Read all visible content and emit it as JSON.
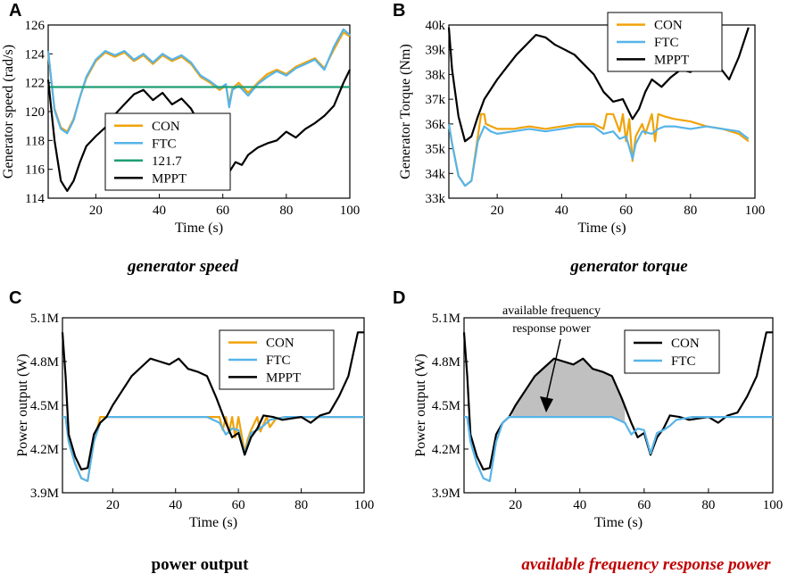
{
  "chart_data": [
    {
      "type": "line",
      "panel": "A",
      "caption": "generator speed",
      "xlabel": "Time (s)",
      "ylabel": "Generator speed (rad/s)",
      "xlim": [
        5,
        100
      ],
      "ylim": [
        114,
        126
      ],
      "xticks": [
        20,
        40,
        60,
        80,
        100
      ],
      "yticks": [
        114,
        116,
        118,
        120,
        122,
        124,
        126
      ],
      "legend_position": "lower-center",
      "series": [
        {
          "name": "CON",
          "color": "#F0A30A",
          "x": [
            5,
            7,
            9,
            11,
            13,
            15,
            17,
            20,
            23,
            26,
            29,
            32,
            35,
            38,
            41,
            44,
            47,
            50,
            53,
            56,
            59,
            61,
            62,
            63,
            65,
            68,
            71,
            74,
            77,
            80,
            83,
            86,
            89,
            92,
            95,
            98,
            100
          ],
          "y": [
            124,
            120.2,
            118.9,
            118.6,
            119.5,
            121,
            122.3,
            123.5,
            124.1,
            123.8,
            124.1,
            123.5,
            123.9,
            123.3,
            123.9,
            123.5,
            123.8,
            123.3,
            122.4,
            122,
            121.5,
            121.8,
            120.5,
            121.6,
            122,
            121.3,
            122,
            122.6,
            122.9,
            122.6,
            123.1,
            123.4,
            123.7,
            123,
            124.3,
            125.5,
            125.2
          ]
        },
        {
          "name": "FTC",
          "color": "#56B4E9",
          "x": [
            5,
            7,
            9,
            11,
            13,
            15,
            17,
            20,
            23,
            26,
            29,
            32,
            35,
            38,
            41,
            44,
            47,
            50,
            53,
            56,
            59,
            61,
            62,
            63,
            65,
            68,
            71,
            74,
            77,
            80,
            83,
            86,
            89,
            92,
            95,
            98,
            100
          ],
          "y": [
            124.2,
            120.1,
            118.8,
            118.5,
            119.4,
            121,
            122.4,
            123.6,
            124.2,
            123.9,
            124.2,
            123.6,
            124,
            123.4,
            124,
            123.6,
            123.9,
            123.4,
            122.5,
            122.1,
            121.6,
            121.9,
            120.3,
            121.5,
            121.8,
            121.1,
            121.9,
            122.4,
            122.8,
            122.5,
            123,
            123.3,
            123.6,
            122.9,
            124.5,
            125.7,
            125.3
          ]
        },
        {
          "name": "121.7",
          "color": "#1E9E74",
          "x": [
            5,
            100
          ],
          "y": [
            121.7,
            121.7
          ]
        },
        {
          "name": "MPPT",
          "color": "#000000",
          "x": [
            5,
            7,
            9,
            11,
            13,
            15,
            17,
            20,
            23,
            26,
            29,
            32,
            35,
            38,
            41,
            44,
            47,
            50,
            53,
            56,
            59,
            62,
            64,
            66,
            68,
            71,
            74,
            77,
            80,
            83,
            86,
            89,
            92,
            95,
            98,
            100
          ],
          "y": [
            122.2,
            118,
            115.2,
            114.5,
            115.2,
            116.5,
            117.6,
            118.3,
            118.9,
            119.8,
            120.5,
            121.2,
            121.5,
            120.8,
            121.3,
            120.5,
            120.9,
            120.2,
            119,
            118,
            117.3,
            115.8,
            116.5,
            116.3,
            117,
            117.5,
            117.8,
            118,
            118.6,
            118.2,
            118.8,
            119.2,
            119.7,
            120.4,
            122,
            122.9
          ]
        }
      ]
    },
    {
      "type": "line",
      "panel": "B",
      "caption": "generator torque",
      "xlabel": "Time (s)",
      "ylabel": "Generator Torque (Nm)",
      "xlim": [
        5,
        100
      ],
      "ylim": [
        33000,
        40000
      ],
      "xticks": [
        20,
        40,
        60,
        80,
        100
      ],
      "yticks": [
        33000,
        34000,
        35000,
        36000,
        37000,
        38000,
        39000,
        40000
      ],
      "ytick_labels": [
        "33k",
        "34k",
        "35k",
        "36k",
        "37k",
        "38k",
        "39k",
        "40k"
      ],
      "legend_position": "top-center",
      "series": [
        {
          "name": "CON",
          "color": "#F0A30A",
          "x": [
            5,
            6,
            8,
            10,
            12,
            14,
            15,
            16,
            16.5,
            20,
            25,
            30,
            35,
            40,
            45,
            50,
            53,
            54,
            56,
            58,
            59,
            60,
            61,
            62,
            63,
            65,
            66,
            68,
            69,
            70,
            72,
            75,
            80,
            85,
            90,
            95,
            98
          ],
          "y": [
            36000,
            35200,
            33900,
            33500,
            33700,
            35500,
            36400,
            36400,
            36000,
            35800,
            35800,
            35900,
            35800,
            35900,
            36000,
            36000,
            35800,
            36400,
            36400,
            35700,
            36400,
            35300,
            36200,
            34500,
            35500,
            36000,
            35600,
            36400,
            35300,
            36400,
            36300,
            36200,
            36100,
            35900,
            35800,
            35600,
            35300
          ]
        },
        {
          "name": "FTC",
          "color": "#56B4E9",
          "x": [
            5,
            6,
            8,
            10,
            12,
            14,
            16,
            18,
            20,
            25,
            30,
            35,
            40,
            45,
            50,
            53,
            56,
            58,
            60,
            62,
            63,
            65,
            68,
            70,
            72,
            75,
            80,
            85,
            90,
            95,
            98
          ],
          "y": [
            36000,
            35200,
            33900,
            33500,
            33700,
            35300,
            35900,
            35700,
            35600,
            35700,
            35800,
            35700,
            35800,
            35900,
            35900,
            35600,
            35700,
            35400,
            35500,
            34600,
            35200,
            35700,
            35600,
            35800,
            35900,
            35900,
            35800,
            35900,
            35800,
            35700,
            35400
          ]
        },
        {
          "name": "MPPT",
          "color": "#000000",
          "x": [
            5,
            6,
            8,
            10,
            12,
            14,
            16,
            18,
            20,
            23,
            26,
            29,
            32,
            35,
            38,
            41,
            44,
            47,
            50,
            53,
            56,
            59,
            62,
            64,
            66,
            68,
            71,
            74,
            77,
            80,
            83,
            86,
            89,
            92,
            95,
            98
          ],
          "y": [
            39900,
            38200,
            36300,
            35300,
            35500,
            36300,
            37000,
            37400,
            37800,
            38300,
            38800,
            39200,
            39600,
            39500,
            39200,
            39000,
            38800,
            38400,
            38000,
            37300,
            36900,
            37000,
            36200,
            36600,
            37300,
            37800,
            37500,
            37900,
            38200,
            38100,
            38500,
            38200,
            38300,
            37800,
            38700,
            39900
          ]
        }
      ]
    },
    {
      "type": "line",
      "panel": "C",
      "caption": "power output",
      "xlabel": "Time (s)",
      "ylabel": "Power output (W)",
      "xlim": [
        4,
        100
      ],
      "ylim": [
        3900000,
        5100000
      ],
      "xticks": [
        20,
        40,
        60,
        80,
        100
      ],
      "yticks": [
        3900000,
        4200000,
        4500000,
        4800000,
        5100000
      ],
      "ytick_labels": [
        "3.9M",
        "4.2M",
        "4.5M",
        "4.8M",
        "5.1M"
      ],
      "legend_position": "top-right",
      "series": [
        {
          "name": "CON",
          "color": "#F0A30A",
          "x": [
            4,
            5,
            6,
            8,
            10,
            12,
            14,
            16,
            16.5,
            20,
            25,
            30,
            40,
            50,
            54,
            55,
            56,
            57,
            58,
            59,
            60,
            61,
            62,
            63,
            64,
            66,
            67,
            69,
            70,
            72,
            75,
            80,
            85,
            90,
            95,
            100
          ],
          "y": [
            4420000,
            4420000,
            4250000,
            4100000,
            4000000,
            3980000,
            4250000,
            4420000,
            4420000,
            4420000,
            4420000,
            4420000,
            4420000,
            4420000,
            4420000,
            4330000,
            4420000,
            4310000,
            4420000,
            4280000,
            4420000,
            4300000,
            4180000,
            4270000,
            4330000,
            4420000,
            4320000,
            4420000,
            4350000,
            4410000,
            4420000,
            4420000,
            4420000,
            4420000,
            4420000,
            4420000
          ]
        },
        {
          "name": "FTC",
          "color": "#56B4E9",
          "x": [
            4,
            5,
            6,
            8,
            10,
            12,
            14,
            16,
            18,
            20,
            30,
            40,
            50,
            54,
            56,
            58,
            60,
            62,
            64,
            66,
            68,
            70,
            75,
            80,
            90,
            100
          ],
          "y": [
            4420000,
            4420000,
            4250000,
            4100000,
            4000000,
            3980000,
            4250000,
            4380000,
            4420000,
            4420000,
            4420000,
            4420000,
            4420000,
            4380000,
            4300000,
            4340000,
            4330000,
            4170000,
            4310000,
            4330000,
            4360000,
            4400000,
            4420000,
            4420000,
            4420000,
            4420000
          ]
        },
        {
          "name": "MPPT",
          "color": "#000000",
          "x": [
            4,
            5,
            6,
            8,
            10,
            12,
            14,
            16,
            18,
            20,
            23,
            26,
            29,
            32,
            35,
            38,
            41,
            44,
            47,
            50,
            53,
            56,
            58,
            60,
            62,
            64,
            66,
            68,
            71,
            74,
            77,
            80,
            83,
            86,
            89,
            92,
            95,
            98,
            100
          ],
          "y": [
            5000000,
            4700000,
            4300000,
            4150000,
            4060000,
            4070000,
            4300000,
            4380000,
            4420000,
            4500000,
            4600000,
            4700000,
            4760000,
            4820000,
            4800000,
            4780000,
            4820000,
            4750000,
            4730000,
            4700000,
            4550000,
            4380000,
            4280000,
            4310000,
            4160000,
            4280000,
            4340000,
            4430000,
            4420000,
            4400000,
            4410000,
            4420000,
            4380000,
            4430000,
            4450000,
            4560000,
            4700000,
            5000000,
            5000000
          ]
        }
      ]
    },
    {
      "type": "area",
      "panel": "D",
      "caption": "available frequency response power",
      "xlabel": "Time (s)",
      "ylabel": "Power output (W)",
      "xlim": [
        4,
        100
      ],
      "ylim": [
        3900000,
        5100000
      ],
      "xticks": [
        20,
        40,
        60,
        80,
        100
      ],
      "yticks": [
        3900000,
        4200000,
        4500000,
        4800000,
        5100000
      ],
      "ytick_labels": [
        "3.9M",
        "4.2M",
        "4.5M",
        "4.8M",
        "5.1M"
      ],
      "legend_position": "top-right",
      "annotation": "available frequency response power",
      "annotation_lines": [
        "available frequency",
        "response  power"
      ],
      "shaded_region": {
        "x_start": 19,
        "x_end": 54,
        "color": "#C0C0C0"
      },
      "series": [
        {
          "name": "CON",
          "color": "#000000",
          "x": [
            4,
            5,
            6,
            8,
            10,
            12,
            14,
            16,
            18,
            20,
            23,
            26,
            29,
            32,
            35,
            38,
            41,
            44,
            47,
            50,
            53,
            56,
            58,
            60,
            62,
            64,
            66,
            68,
            71,
            74,
            77,
            80,
            83,
            86,
            89,
            92,
            95,
            98,
            100
          ],
          "y": [
            5000000,
            4700000,
            4300000,
            4150000,
            4060000,
            4070000,
            4300000,
            4380000,
            4420000,
            4500000,
            4600000,
            4700000,
            4760000,
            4820000,
            4800000,
            4780000,
            4820000,
            4750000,
            4730000,
            4700000,
            4550000,
            4380000,
            4280000,
            4310000,
            4160000,
            4280000,
            4340000,
            4430000,
            4420000,
            4400000,
            4410000,
            4420000,
            4380000,
            4430000,
            4450000,
            4560000,
            4700000,
            5000000,
            5000000
          ]
        },
        {
          "name": "FTC",
          "color": "#56B4E9",
          "x": [
            4,
            5,
            6,
            8,
            10,
            12,
            14,
            16,
            18,
            20,
            30,
            40,
            50,
            54,
            56,
            58,
            60,
            62,
            64,
            66,
            68,
            70,
            75,
            80,
            90,
            100
          ],
          "y": [
            4420000,
            4420000,
            4250000,
            4100000,
            4000000,
            3980000,
            4250000,
            4380000,
            4420000,
            4420000,
            4420000,
            4420000,
            4420000,
            4380000,
            4300000,
            4340000,
            4330000,
            4170000,
            4310000,
            4330000,
            4360000,
            4400000,
            4420000,
            4420000,
            4420000,
            4420000
          ]
        }
      ]
    }
  ]
}
